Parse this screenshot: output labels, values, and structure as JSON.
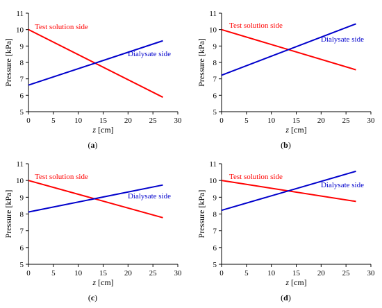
{
  "chart_data": [
    {
      "type": "line",
      "panel_label": "(a)",
      "xlabel_italic": "z",
      "xlabel_unit": " [cm]",
      "ylabel": "Pressure [kPa]",
      "xlim": [
        0,
        30
      ],
      "ylim": [
        5,
        11
      ],
      "xticks": [
        0,
        5,
        10,
        15,
        20,
        25,
        30
      ],
      "yticks": [
        5,
        6,
        7,
        8,
        9,
        10,
        11
      ],
      "grid": false,
      "series": [
        {
          "name": "Test solution side",
          "color": "#ff0000",
          "x": [
            0,
            27
          ],
          "y": [
            10.0,
            5.88
          ]
        },
        {
          "name": "Dialysate side",
          "color": "#0000cc",
          "x": [
            0,
            27
          ],
          "y": [
            6.62,
            9.32
          ]
        }
      ]
    },
    {
      "type": "line",
      "panel_label": "(b)",
      "xlabel_italic": "z",
      "xlabel_unit": " [cm]",
      "ylabel": "Pressure [kPa]",
      "xlim": [
        0,
        30
      ],
      "ylim": [
        5,
        11
      ],
      "xticks": [
        0,
        5,
        10,
        15,
        20,
        25,
        30
      ],
      "yticks": [
        5,
        6,
        7,
        8,
        9,
        10,
        11
      ],
      "grid": false,
      "series": [
        {
          "name": "Test solution side",
          "color": "#ff0000",
          "x": [
            0,
            27
          ],
          "y": [
            10.0,
            7.55
          ]
        },
        {
          "name": "Dialysate side",
          "color": "#0000cc",
          "x": [
            0,
            27
          ],
          "y": [
            7.22,
            10.35
          ]
        }
      ]
    },
    {
      "type": "line",
      "panel_label": "(c)",
      "xlabel_italic": "z",
      "xlabel_unit": " [cm]",
      "ylabel": "Pressure [kPa]",
      "xlim": [
        0,
        30
      ],
      "ylim": [
        5,
        11
      ],
      "xticks": [
        0,
        5,
        10,
        15,
        20,
        25,
        30
      ],
      "yticks": [
        5,
        6,
        7,
        8,
        9,
        10,
        11
      ],
      "grid": false,
      "series": [
        {
          "name": "Test solution side",
          "color": "#ff0000",
          "x": [
            0,
            27
          ],
          "y": [
            10.0,
            7.78
          ]
        },
        {
          "name": "Dialysate side",
          "color": "#0000cc",
          "x": [
            0,
            27
          ],
          "y": [
            8.12,
            9.73
          ]
        }
      ]
    },
    {
      "type": "line",
      "panel_label": "(d)",
      "xlabel_italic": "z",
      "xlabel_unit": " [cm]",
      "ylabel": "Pressure [kPa]",
      "xlim": [
        0,
        30
      ],
      "ylim": [
        5,
        11
      ],
      "xticks": [
        0,
        5,
        10,
        15,
        20,
        25,
        30
      ],
      "yticks": [
        5,
        6,
        7,
        8,
        9,
        10,
        11
      ],
      "grid": false,
      "series": [
        {
          "name": "Test solution side",
          "color": "#ff0000",
          "x": [
            0,
            27
          ],
          "y": [
            10.0,
            8.75
          ]
        },
        {
          "name": "Dialysate side",
          "color": "#0000cc",
          "x": [
            0,
            27
          ],
          "y": [
            8.22,
            10.55
          ]
        }
      ]
    }
  ]
}
